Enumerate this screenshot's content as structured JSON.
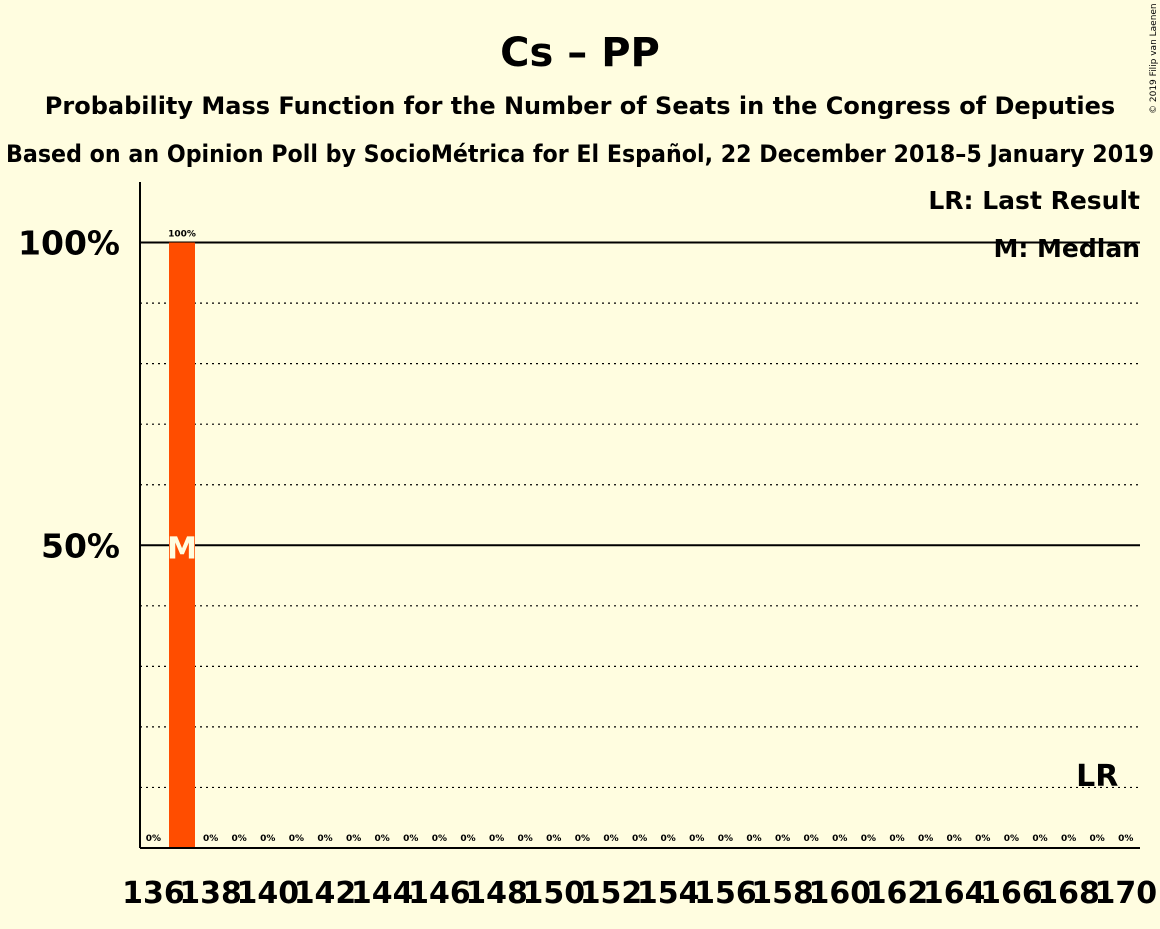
{
  "title": "Cs – PP",
  "subtitle": "Probability Mass Function for the Number of Seats in the Congress of Deputies",
  "subtitle2": "Based on an Opinion Poll by SocioMétrica for El Español, 22 December 2018–5 January 2019",
  "copyright": "© 2019 Filip van Laenen",
  "legend": {
    "last_result": "LR: Last Result",
    "median": "M: Median"
  },
  "markers": {
    "median_label": "M",
    "median_seat": 137,
    "last_result_label": "LR",
    "last_result_seat": 169
  },
  "colors": {
    "bar": "#ff4d00",
    "background": "#fffde0"
  },
  "chart_data": {
    "type": "bar",
    "x": [
      136,
      137,
      138,
      139,
      140,
      141,
      142,
      143,
      144,
      145,
      146,
      147,
      148,
      149,
      150,
      151,
      152,
      153,
      154,
      155,
      156,
      157,
      158,
      159,
      160,
      161,
      162,
      163,
      164,
      165,
      166,
      167,
      168,
      169,
      170
    ],
    "values": [
      0,
      100,
      0,
      0,
      0,
      0,
      0,
      0,
      0,
      0,
      0,
      0,
      0,
      0,
      0,
      0,
      0,
      0,
      0,
      0,
      0,
      0,
      0,
      0,
      0,
      0,
      0,
      0,
      0,
      0,
      0,
      0,
      0,
      0,
      0
    ],
    "value_labels": [
      "0%",
      "100%",
      "0%",
      "0%",
      "0%",
      "0%",
      "0%",
      "0%",
      "0%",
      "0%",
      "0%",
      "0%",
      "0%",
      "0%",
      "0%",
      "0%",
      "0%",
      "0%",
      "0%",
      "0%",
      "0%",
      "0%",
      "0%",
      "0%",
      "0%",
      "0%",
      "0%",
      "0%",
      "0%",
      "0%",
      "0%",
      "0%",
      "0%",
      "0%",
      "0%"
    ],
    "x_tick_labels": [
      "136",
      "138",
      "140",
      "142",
      "144",
      "146",
      "148",
      "150",
      "152",
      "154",
      "156",
      "158",
      "160",
      "162",
      "164",
      "166",
      "168",
      "170"
    ],
    "y_tick_labels": [
      "50%",
      "100%"
    ],
    "ylim": [
      0,
      110
    ],
    "grid": "dotted every 10%, solid at 50% and 100%",
    "legend_position": "top-right"
  }
}
